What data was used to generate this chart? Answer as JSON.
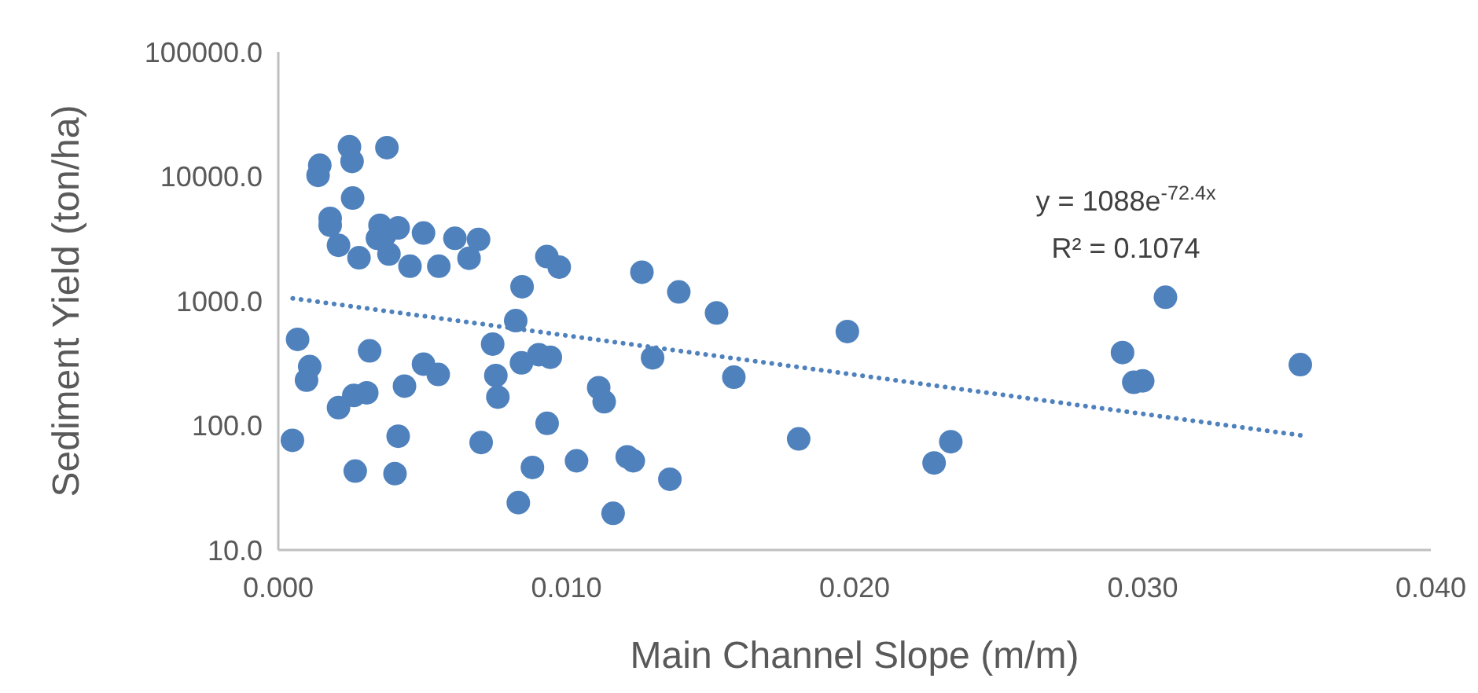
{
  "chart_data": {
    "type": "scatter",
    "xlabel": "Main Channel Slope (m/m)",
    "ylabel": "Sediment Yield (ton/ha)",
    "log": "y",
    "grid": false,
    "marker": "circle",
    "xlim": [
      0,
      0.04
    ],
    "xticks": [
      {
        "value": 0,
        "label": "0.000"
      },
      {
        "value": 0.01,
        "label": "0.010"
      },
      {
        "value": 0.02,
        "label": "0.020"
      },
      {
        "value": 0.03,
        "label": "0.030"
      },
      {
        "value": 0.04,
        "label": "0.040"
      }
    ],
    "ylim": [
      10,
      100000
    ],
    "yticks": [
      {
        "value": 10,
        "label": "10.0"
      },
      {
        "value": 100,
        "label": "100.0"
      },
      {
        "value": 1000,
        "label": "1000.0"
      },
      {
        "value": 10000,
        "label": "10000.0"
      },
      {
        "value": 100000,
        "label": "100000.0"
      }
    ],
    "annotations": [
      "y = 1088e$^{-72.4x}$",
      "R² = 0.1074"
    ],
    "series": [
      {
        "color": "#4f81bd",
        "x": [
          0.00247,
          0.00377,
          0.00144,
          0.00256,
          0.00138,
          0.00258,
          0.0018,
          0.0018,
          0.00209,
          0.0028,
          0.00353,
          0.00416,
          0.00344,
          0.00384,
          0.00371,
          0.00504,
          0.00457,
          0.00557,
          0.00613,
          0.00695,
          0.00662,
          0.00932,
          0.00975,
          0.00846,
          0.00824,
          0.00067,
          0.00317,
          0.00744,
          0.00109,
          0.00098,
          0.00504,
          0.00555,
          0.00438,
          0.00844,
          0.00904,
          0.00944,
          0.00755,
          0.00762,
          0.00262,
          0.00307,
          0.00209,
          0.00933,
          0.00049,
          0.00416,
          0.00704,
          0.00267,
          0.00405,
          0.00882,
          0.01035,
          0.00833,
          0.01262,
          0.0139,
          0.01521,
          0.01975,
          0.01299,
          0.01581,
          0.01112,
          0.01131,
          0.01211,
          0.01232,
          0.01359,
          0.01162,
          0.01806,
          0.02334,
          0.02276,
          0.03079,
          0.0293,
          0.02969,
          0.03,
          0.03547
        ],
        "values": [
          17300,
          17000,
          12300,
          13200,
          10200,
          6700,
          4600,
          4050,
          2800,
          2220,
          4050,
          3860,
          3180,
          2380,
          3410,
          3510,
          1900,
          1900,
          3180,
          3120,
          2200,
          2270,
          1870,
          1300,
          695,
          491,
          397,
          450,
          297,
          231,
          311,
          257,
          207,
          318,
          370,
          353,
          252,
          169,
          174,
          183,
          139,
          104,
          76,
          82,
          73,
          43,
          41,
          46,
          52,
          24,
          1700,
          1180,
          800,
          568,
          349,
          244,
          201,
          155,
          56,
          52,
          37,
          19.7,
          78,
          74,
          50,
          1070,
          385,
          222,
          228,
          308
        ]
      },
      {
        "type": "line",
        "color": "#4f81bd",
        "line_style": "dotted",
        "marker": "none",
        "x": [
          0.0005,
          0.0357
        ],
        "values": [
          1049,
          82
        ]
      }
    ]
  }
}
